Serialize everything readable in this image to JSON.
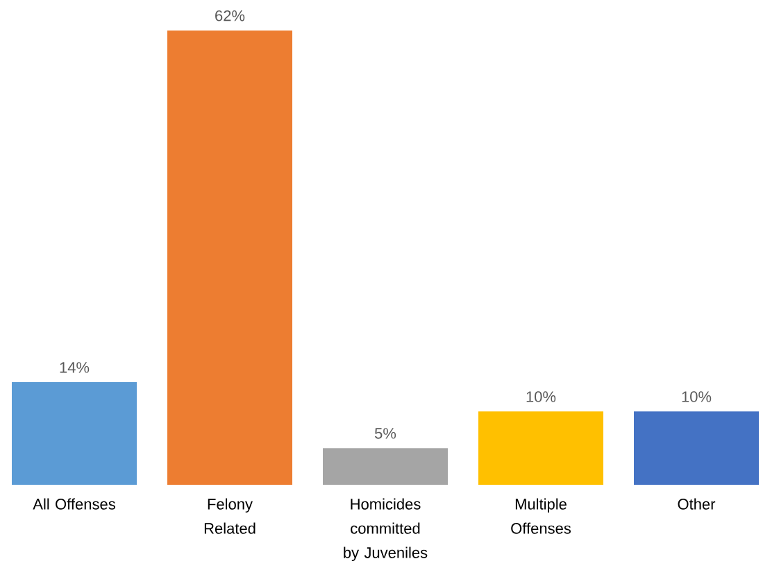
{
  "chart_data": {
    "type": "bar",
    "categories": [
      "All Offenses",
      "Felony Related",
      "Homicides committed by Juveniles",
      "Multiple Offenses",
      "Other"
    ],
    "values": [
      14,
      62,
      5,
      10,
      10
    ],
    "colors": [
      "#5b9bd5",
      "#ed7d31",
      "#a5a5a5",
      "#ffc000",
      "#4472c4"
    ],
    "value_labels": [
      "14%",
      "62%",
      "5%",
      "10%",
      "10%"
    ]
  }
}
